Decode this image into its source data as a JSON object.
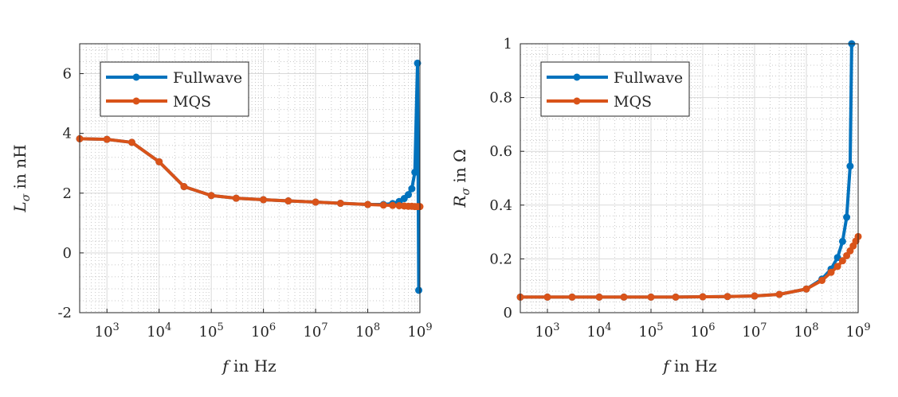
{
  "chart_data": [
    {
      "type": "line",
      "xscale": "log",
      "xlim": [
        300,
        1000000000
      ],
      "ylim": [
        -2,
        7
      ],
      "xticks": [
        1000,
        10000,
        100000,
        1000000,
        10000000,
        100000000,
        1000000000
      ],
      "yticks": [
        -2,
        0,
        2,
        4,
        6
      ],
      "grid": true,
      "legend_placement": "top-left",
      "series": [
        {
          "name": "Fullwave",
          "color": "#0072BD",
          "x": [
            300,
            1000,
            3000,
            10000,
            30000,
            100000,
            300000,
            1000000,
            3000000,
            10000000,
            30000000,
            100000000,
            200000000,
            300000000,
            400000000,
            500000000,
            600000000,
            700000000,
            800000000,
            900000000,
            950000000
          ],
          "y": [
            3.82,
            3.8,
            3.7,
            3.05,
            2.22,
            1.92,
            1.83,
            1.78,
            1.74,
            1.7,
            1.66,
            1.62,
            1.62,
            1.65,
            1.72,
            1.82,
            1.95,
            2.15,
            2.7,
            6.35,
            -1.25
          ]
        },
        {
          "name": "MQS",
          "color": "#D95319",
          "x": [
            300,
            1000,
            3000,
            10000,
            30000,
            100000,
            300000,
            1000000,
            3000000,
            10000000,
            30000000,
            100000000,
            200000000,
            300000000,
            400000000,
            500000000,
            600000000,
            700000000,
            800000000,
            900000000,
            1000000000
          ],
          "y": [
            3.82,
            3.8,
            3.7,
            3.05,
            2.22,
            1.92,
            1.83,
            1.78,
            1.74,
            1.7,
            1.66,
            1.62,
            1.6,
            1.59,
            1.58,
            1.57,
            1.56,
            1.56,
            1.55,
            1.55,
            1.55
          ]
        }
      ]
    },
    {
      "type": "line",
      "xscale": "log",
      "xlim": [
        300,
        1000000000
      ],
      "ylim": [
        0,
        1
      ],
      "xticks": [
        1000,
        10000,
        100000,
        1000000,
        10000000,
        100000000,
        1000000000
      ],
      "yticks": [
        0,
        0.2,
        0.4,
        0.6,
        0.8,
        1
      ],
      "grid": true,
      "legend_placement": "top-left",
      "series": [
        {
          "name": "Fullwave",
          "color": "#0072BD",
          "x": [
            300,
            1000,
            3000,
            10000,
            30000,
            100000,
            300000,
            1000000,
            3000000,
            10000000,
            30000000,
            100000000,
            200000000,
            300000000,
            400000000,
            500000000,
            600000000,
            700000000,
            750000000
          ],
          "y": [
            0.058,
            0.058,
            0.058,
            0.058,
            0.058,
            0.058,
            0.058,
            0.059,
            0.06,
            0.062,
            0.068,
            0.088,
            0.125,
            0.162,
            0.205,
            0.265,
            0.355,
            0.545,
            1.0
          ]
        },
        {
          "name": "MQS",
          "color": "#D95319",
          "x": [
            300,
            1000,
            3000,
            10000,
            30000,
            100000,
            300000,
            1000000,
            3000000,
            10000000,
            30000000,
            100000000,
            200000000,
            300000000,
            400000000,
            500000000,
            600000000,
            700000000,
            800000000,
            900000000,
            1000000000
          ],
          "y": [
            0.058,
            0.058,
            0.058,
            0.058,
            0.058,
            0.058,
            0.058,
            0.059,
            0.06,
            0.062,
            0.068,
            0.088,
            0.12,
            0.15,
            0.172,
            0.193,
            0.212,
            0.23,
            0.248,
            0.266,
            0.283
          ]
        }
      ]
    }
  ],
  "plots": [
    {
      "ylabel": "L",
      "ylabel_sub": "σ",
      "ylabel_rest": " in nH",
      "xlabel_var": "f",
      "xlabel_rest": " in Hz",
      "ytick_labels": [
        "-2",
        "0",
        "2",
        "4",
        "6"
      ],
      "legend": {
        "fullwave": "Fullwave",
        "mqs": "MQS"
      }
    },
    {
      "ylabel": "R",
      "ylabel_sub": "σ",
      "ylabel_rest": " in Ω",
      "xlabel_var": "f",
      "xlabel_rest": " in Hz",
      "ytick_labels": [
        "0",
        "0.2",
        "0.4",
        "0.6",
        "0.8",
        "1"
      ],
      "legend": {
        "fullwave": "Fullwave",
        "mqs": "MQS"
      }
    }
  ],
  "xtick_labels": [
    {
      "base": "10",
      "exp": "3"
    },
    {
      "base": "10",
      "exp": "4"
    },
    {
      "base": "10",
      "exp": "5"
    },
    {
      "base": "10",
      "exp": "6"
    },
    {
      "base": "10",
      "exp": "7"
    },
    {
      "base": "10",
      "exp": "8"
    },
    {
      "base": "10",
      "exp": "9"
    }
  ]
}
